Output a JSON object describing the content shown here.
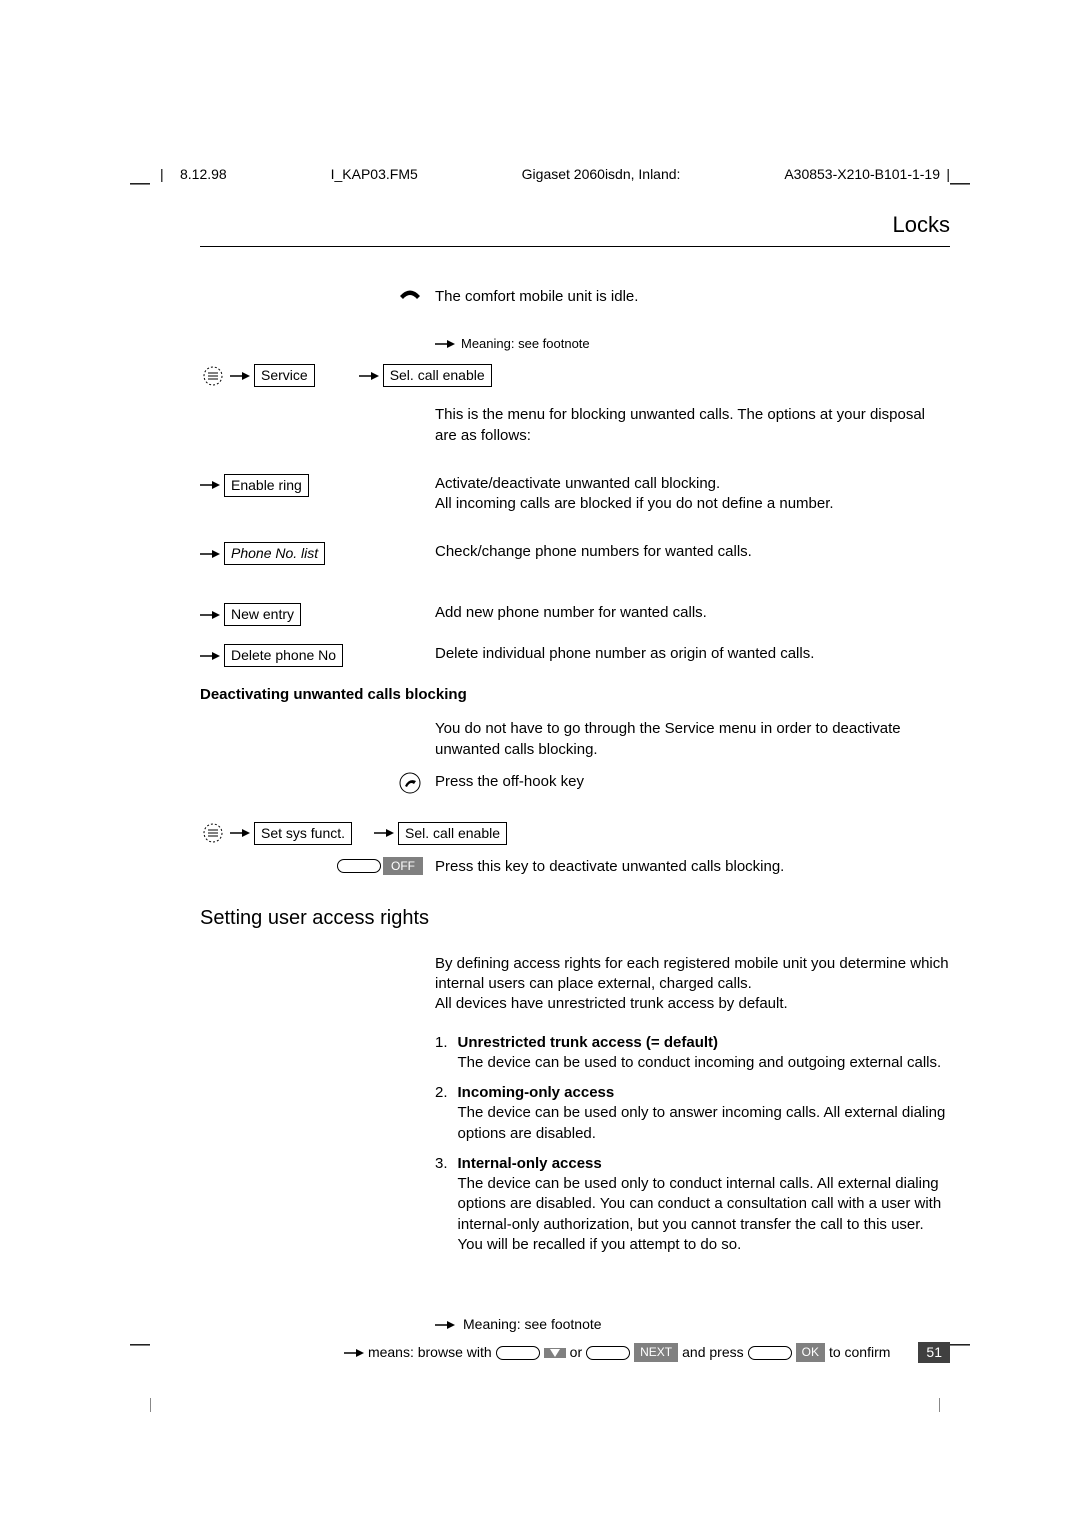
{
  "meta": {
    "date": "8.12.98",
    "file": "I_KAP03.FM5",
    "product": "Gigaset 2060isdn, Inland:",
    "code": "A30853-X210-B101-1-19"
  },
  "sectionTitle": "Locks",
  "line_idle": "The comfort mobile unit is idle.",
  "meaning_note": "Meaning: see footnote",
  "service_box": "Service",
  "sel_call_enable_box": "Sel. call enable",
  "menu_intro": "This is the menu for blocking unwanted calls. The options at your disposal are as follows:",
  "items": {
    "enable_ring": {
      "label": "Enable ring",
      "line1": "Activate/deactivate unwanted call blocking.",
      "line2": "All incoming calls are blocked if you do not define a number."
    },
    "phone_list": {
      "label": "Phone No. list",
      "desc": "Check/change phone numbers for wanted calls."
    },
    "new_entry": {
      "label": "New entry",
      "desc": "Add new phone number for wanted calls."
    },
    "delete_no": {
      "label": "Delete phone No",
      "desc": "Delete individual phone number as origin of wanted calls."
    }
  },
  "deact_heading": "Deactivating unwanted calls blocking",
  "deact_intro": "You do not have to go through the Service menu in order to deactivate unwanted calls blocking.",
  "press_offhook": "Press the off-hook key",
  "set_sys_box": "Set sys funct.",
  "off_label": "OFF",
  "press_off_key": "Press this key to deactivate unwanted calls blocking.",
  "access_heading": "Setting user access rights",
  "access_intro": "By defining access rights for each registered mobile unit you determine which internal users can place external, charged calls.\nAll devices have unrestricted trunk access by default.",
  "access_list": [
    {
      "num": "1.",
      "title": "Unrestricted trunk access (= default)",
      "body": "The device can be used to conduct incoming and outgoing external calls."
    },
    {
      "num": "2.",
      "title": "Incoming-only access",
      "body": "The device can be used only to answer incoming calls. All external dialing options are disabled."
    },
    {
      "num": "3.",
      "title": "Internal-only access",
      "body": "The device can be used only to conduct internal calls. All external dialing options are disabled. You can conduct a consultation call with a user with internal-only authorization, but you cannot transfer the call to this user. You will be recalled if you attempt to do so."
    }
  ],
  "footer_means": "means: browse with",
  "footer_or": "or",
  "footer_and_press": "and press",
  "footer_confirm": "to confirm",
  "next_label": "NEXT",
  "ok_label": "OK",
  "page": "51"
}
